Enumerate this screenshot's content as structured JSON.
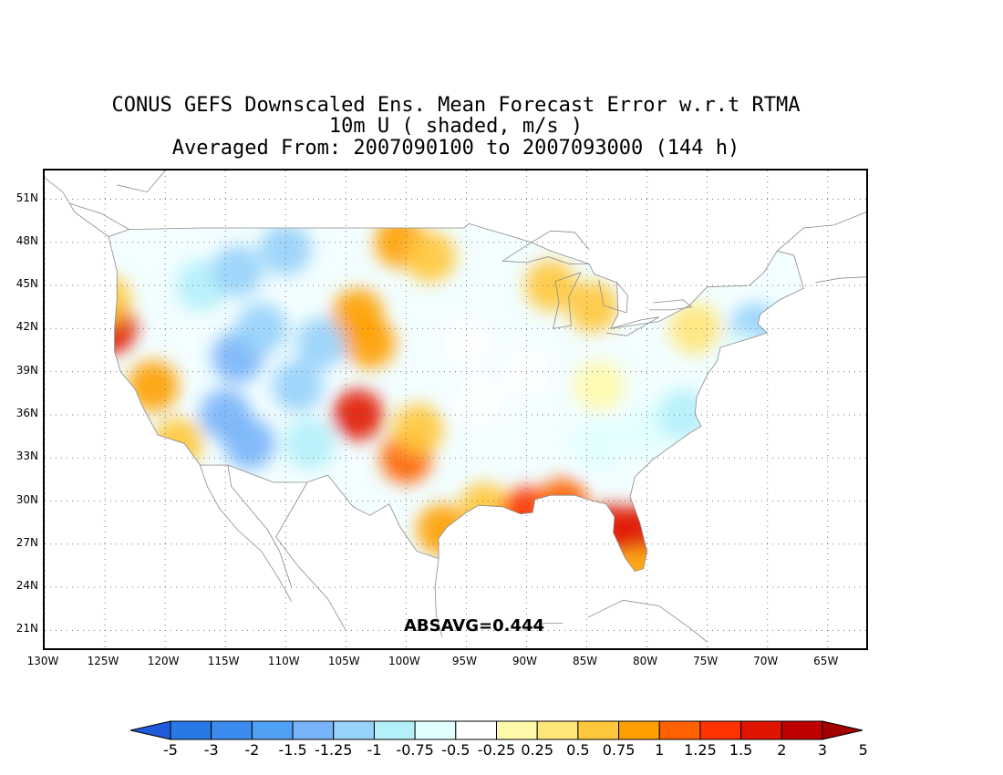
{
  "title": {
    "line1": "CONUS GEFS Downscaled Ens. Mean Forecast Error w.r.t RTMA",
    "line2": "10m U ( shaded, m/s )",
    "line3": "Averaged From: 2007090100 to 2007093000 (144 h)"
  },
  "annotation": "ABSAVG=0.444",
  "axes": {
    "lat_ticks": [
      "51N",
      "48N",
      "45N",
      "42N",
      "39N",
      "36N",
      "33N",
      "30N",
      "27N",
      "24N",
      "21N"
    ],
    "lon_ticks": [
      "130W",
      "125W",
      "120W",
      "115W",
      "110W",
      "105W",
      "100W",
      "95W",
      "90W",
      "85W",
      "80W",
      "75W",
      "70W",
      "65W"
    ],
    "lat_range": [
      19.5,
      53
    ],
    "lon_range": [
      -130,
      -61.5
    ],
    "grid": "dotted"
  },
  "colorbar": {
    "labels": [
      "-5",
      "-3",
      "-2",
      "-1.5",
      "-1.25",
      "-1",
      "-0.75",
      "-0.5",
      "-0.25",
      "0.25",
      "0.5",
      "0.75",
      "1",
      "1.25",
      "1.5",
      "2",
      "3",
      "5"
    ],
    "colors": [
      "#1e5cdb",
      "#2878e6",
      "#3c8cf0",
      "#50a0f5",
      "#78b4fa",
      "#96d2fa",
      "#b4f0fa",
      "#e1ffff",
      "#ffffff",
      "#fffaaa",
      "#ffe678",
      "#ffc83c",
      "#ffa000",
      "#ff6000",
      "#ff3200",
      "#e11400",
      "#c00000",
      "#a50000"
    ]
  },
  "chart_data": {
    "type": "heatmap",
    "variable": "10m U forecast error",
    "units": "m/s",
    "abs_avg": 0.444,
    "features": [
      {
        "lon": -124.5,
        "lat": 42.0,
        "value": 1.5
      },
      {
        "lon": -125.0,
        "lat": 44.0,
        "value": 0.5
      },
      {
        "lon": -121.0,
        "lat": 38.0,
        "value": 0.75
      },
      {
        "lon": -119.0,
        "lat": 34.0,
        "value": 0.5
      },
      {
        "lon": -117.0,
        "lat": 45.0,
        "value": -1.0
      },
      {
        "lon": -114.0,
        "lat": 46.0,
        "value": -1.25
      },
      {
        "lon": -110.0,
        "lat": 47.5,
        "value": -1.25
      },
      {
        "lon": -114.0,
        "lat": 40.0,
        "value": -1.5
      },
      {
        "lon": -112.0,
        "lat": 42.0,
        "value": -1.25
      },
      {
        "lon": -109.0,
        "lat": 38.0,
        "value": -1.25
      },
      {
        "lon": -115.0,
        "lat": 36.0,
        "value": -1.5
      },
      {
        "lon": -113.0,
        "lat": 34.0,
        "value": -1.5
      },
      {
        "lon": -108.0,
        "lat": 34.0,
        "value": -1.0
      },
      {
        "lon": -107.0,
        "lat": 41.0,
        "value": -1.25
      },
      {
        "lon": -104.0,
        "lat": 36.0,
        "value": 1.5
      },
      {
        "lon": -103.0,
        "lat": 41.0,
        "value": 0.75
      },
      {
        "lon": -104.0,
        "lat": 43.0,
        "value": 0.75
      },
      {
        "lon": -100.5,
        "lat": 48.0,
        "value": 0.75
      },
      {
        "lon": -98.0,
        "lat": 47.0,
        "value": 0.5
      },
      {
        "lon": -100.0,
        "lat": 33.0,
        "value": 1.0
      },
      {
        "lon": -99.0,
        "lat": 35.0,
        "value": 0.5
      },
      {
        "lon": -97.0,
        "lat": 28.0,
        "value": 0.75
      },
      {
        "lon": -93.5,
        "lat": 29.5,
        "value": 0.5
      },
      {
        "lon": -90.0,
        "lat": 29.2,
        "value": 1.25
      },
      {
        "lon": -87.0,
        "lat": 29.8,
        "value": 1.0
      },
      {
        "lon": -83.0,
        "lat": 28.0,
        "value": 1.5
      },
      {
        "lon": -80.5,
        "lat": 28.0,
        "value": 1.5
      },
      {
        "lon": -80.8,
        "lat": 25.0,
        "value": 0.75
      },
      {
        "lon": -88.0,
        "lat": 45.0,
        "value": 0.5
      },
      {
        "lon": -84.5,
        "lat": 43.5,
        "value": 0.5
      },
      {
        "lon": -95.0,
        "lat": 41.0,
        "value": -0.5
      },
      {
        "lon": -94.0,
        "lat": 37.0,
        "value": -0.5
      },
      {
        "lon": -90.0,
        "lat": 39.0,
        "value": -0.5
      },
      {
        "lon": -84.0,
        "lat": 38.0,
        "value": -0.25
      },
      {
        "lon": -84.0,
        "lat": 34.0,
        "value": -0.75
      },
      {
        "lon": -80.0,
        "lat": 35.0,
        "value": -0.75
      },
      {
        "lon": -77.0,
        "lat": 36.0,
        "value": -1.0
      },
      {
        "lon": -71.0,
        "lat": 42.0,
        "value": -1.25
      },
      {
        "lon": -72.0,
        "lat": 40.0,
        "value": -0.75
      },
      {
        "lon": -76.0,
        "lat": 42.0,
        "value": 0.25
      }
    ]
  }
}
